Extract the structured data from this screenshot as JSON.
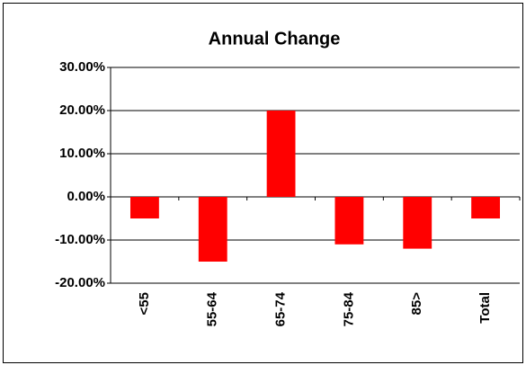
{
  "chart_data": {
    "type": "bar",
    "title": "Annual Change",
    "categories": [
      "<55",
      "55-64",
      "65-74",
      "75-84",
      "85>",
      "Total"
    ],
    "values": [
      -5,
      -15,
      20,
      -11,
      -12,
      -5
    ],
    "color": "#ff0000",
    "ylim": [
      -20,
      30
    ],
    "yticks": [
      {
        "value": -20,
        "label": "-20.00%"
      },
      {
        "value": -10,
        "label": "-10.00%"
      },
      {
        "value": 0,
        "label": "0.00%"
      },
      {
        "value": 10,
        "label": "10.00%"
      },
      {
        "value": 20,
        "label": "20.00%"
      },
      {
        "value": 30,
        "label": "30.00%"
      }
    ],
    "grid": true
  }
}
